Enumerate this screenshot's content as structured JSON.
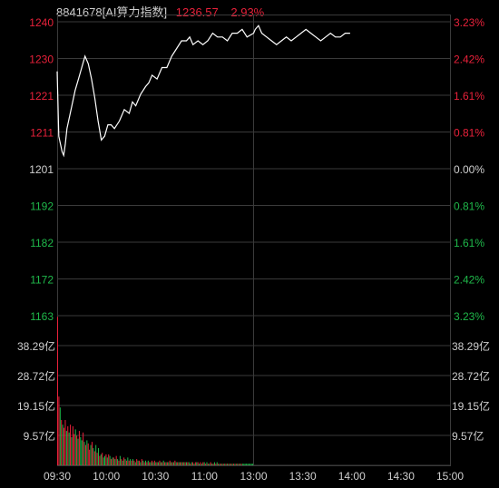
{
  "header": {
    "code_name": "8841678[AI算力指数]",
    "last_price": "1236.57",
    "change_pct": "2.93%"
  },
  "colors": {
    "background": "#000000",
    "grid": "#3a3a3a",
    "up": "#e8213a",
    "down": "#1fb84a",
    "neutral": "#cfcfcf",
    "price_line": "#ffffff"
  },
  "chart_data": [
    {
      "type": "line",
      "title": "8841678[AI算力指数]",
      "base_price": 1201.37,
      "ylim": [
        1163,
        1240
      ],
      "y_ticks_left": [
        "1240",
        "1230",
        "1221",
        "1211",
        "1201",
        "1192",
        "1182",
        "1172",
        "1163"
      ],
      "y_ticks_right": [
        "3.23%",
        "2.42%",
        "1.61%",
        "0.81%",
        "0.00%",
        "0.81%",
        "1.61%",
        "2.42%",
        "3.23%"
      ],
      "x_ticks": [
        "09:30",
        "10:00",
        "10:30",
        "11:00",
        "13:00",
        "13:30",
        "14:00",
        "14:30",
        "15:00"
      ],
      "series": [
        {
          "x": [
            "09:30",
            "09:31",
            "09:32",
            "09:33",
            "09:34",
            "09:35",
            "09:36",
            "09:37",
            "09:39",
            "09:41",
            "09:43",
            "09:45",
            "09:47",
            "09:49",
            "09:51",
            "09:53",
            "09:55",
            "09:57",
            "09:59",
            "10:01",
            "10:03",
            "10:05",
            "10:08",
            "10:11",
            "10:14",
            "10:16",
            "10:18",
            "10:21",
            "10:24",
            "10:26",
            "10:28",
            "10:31",
            "10:34",
            "10:37",
            "10:40",
            "10:43",
            "10:46",
            "10:49",
            "10:51",
            "10:53",
            "10:56",
            "10:59",
            "11:02",
            "11:05",
            "11:08",
            "11:11",
            "11:14",
            "11:17",
            "11:20",
            "11:23",
            "11:26",
            "11:30",
            "13:01",
            "13:03",
            "13:05",
            "13:08",
            "13:11",
            "13:14",
            "13:17",
            "13:20",
            "13:23",
            "13:26",
            "13:29",
            "13:32",
            "13:35",
            "13:38",
            "13:41",
            "13:44",
            "13:47",
            "13:50",
            "13:53",
            "13:56",
            "13:59"
          ],
          "values": [
            1227,
            1210,
            1208,
            1206,
            1205,
            1208,
            1212,
            1214,
            1218,
            1222,
            1225,
            1228,
            1231,
            1229,
            1225,
            1220,
            1214,
            1209,
            1210,
            1213,
            1213,
            1212,
            1214,
            1217,
            1216,
            1219,
            1218,
            1221,
            1223,
            1224,
            1226,
            1225,
            1228,
            1228,
            1231,
            1233,
            1235,
            1235,
            1236,
            1234,
            1235,
            1234,
            1235,
            1237,
            1236,
            1236,
            1235,
            1237,
            1237,
            1238,
            1236,
            1237,
            1238,
            1239,
            1237,
            1236,
            1235,
            1234,
            1235,
            1236,
            1235,
            1236,
            1237,
            1238,
            1237,
            1236,
            1235,
            1236,
            1237,
            1236,
            1236,
            1237,
            1237
          ]
        }
      ]
    },
    {
      "type": "bar",
      "title": "",
      "y_unit": "亿",
      "ylim": [
        0,
        47.87
      ],
      "y_ticks": [
        "38.29亿",
        "28.72亿",
        "19.15亿",
        "9.57亿"
      ],
      "values": [
        47.5,
        22.0,
        18.5,
        14.5,
        13.0,
        12.0,
        14.5,
        11.0,
        12.5,
        10.5,
        13.0,
        9.0,
        12.5,
        10.0,
        11.5,
        9.5,
        8.5,
        11.0,
        9.0,
        8.0,
        10.5,
        7.5,
        6.5,
        8.0,
        7.0,
        5.0,
        6.5,
        7.5,
        5.5,
        4.5,
        6.5,
        4.0,
        5.5,
        3.0,
        3.5,
        4.0,
        2.5,
        3.0,
        3.5,
        2.5,
        3.5,
        3.0,
        2.0,
        2.5,
        2.5,
        2.0,
        3.0,
        2.0,
        1.5,
        3.0,
        2.0,
        1.5,
        2.5,
        2.0,
        1.5,
        2.5,
        1.5,
        2.0,
        1.5,
        2.0,
        1.5,
        1.0,
        2.0,
        1.5,
        1.5,
        1.0,
        2.0,
        1.5,
        1.0,
        1.5,
        1.0,
        1.5,
        1.0,
        1.0,
        1.5,
        1.0,
        1.5,
        1.0,
        1.0,
        1.0,
        1.5,
        1.0,
        1.0,
        1.5,
        1.0,
        1.0,
        1.0,
        1.0,
        1.5,
        1.0,
        1.0,
        1.0,
        1.5,
        1.0,
        1.0,
        1.0,
        1.0,
        1.0,
        1.0,
        1.0,
        1.0,
        1.0,
        1.0,
        1.0,
        0.5,
        1.0,
        1.0,
        0.5,
        1.0,
        1.0,
        1.0,
        0.5,
        1.0,
        0.5,
        1.0,
        1.0,
        0.5,
        1.0,
        0.5,
        0.5,
        1.0,
        0.5,
        0.5,
        1.0,
        0.5,
        1.0,
        0.5,
        0.5,
        0.5,
        0.5,
        0.5,
        0.5,
        0.5,
        0.5,
        0.5,
        0.5,
        0.5,
        0.5,
        0.5,
        0.5,
        0.5,
        0.5,
        0.5,
        0.5,
        0.5,
        0.5,
        0.5,
        0.5,
        0.5,
        0.5,
        0.5,
        0.5,
        0.5,
        0.5
      ],
      "directions": [
        "up",
        "up",
        "down",
        "up",
        "down",
        "up",
        "up",
        "down",
        "up",
        "down",
        "up",
        "down",
        "up",
        "up",
        "down",
        "up",
        "down",
        "up",
        "down",
        "down",
        "up",
        "down",
        "up",
        "down",
        "up",
        "up",
        "down",
        "up",
        "down",
        "up",
        "down",
        "up",
        "down",
        "up",
        "down",
        "up",
        "down",
        "down",
        "up",
        "down",
        "up",
        "down",
        "up",
        "down",
        "up",
        "down",
        "up",
        "down",
        "up",
        "down",
        "up",
        "down",
        "up",
        "down",
        "up",
        "down",
        "up",
        "down",
        "up",
        "down",
        "up",
        "down",
        "up",
        "down",
        "up",
        "down",
        "up",
        "down",
        "up",
        "down",
        "up",
        "down",
        "up",
        "down",
        "up",
        "down",
        "up",
        "down",
        "up",
        "down",
        "up",
        "down",
        "up",
        "down",
        "up",
        "down",
        "up",
        "down",
        "up",
        "down",
        "up",
        "down",
        "up",
        "down",
        "up",
        "down",
        "up",
        "down",
        "up",
        "down",
        "up",
        "down",
        "up",
        "down",
        "up",
        "down",
        "up",
        "down",
        "up",
        "down",
        "up",
        "down",
        "up",
        "down",
        "up",
        "down",
        "up",
        "down",
        "up",
        "down",
        "up",
        "down",
        "up",
        "down",
        "up",
        "down",
        "up",
        "down",
        "up",
        "down",
        "up",
        "down",
        "up",
        "down",
        "up",
        "down",
        "up",
        "down",
        "up",
        "down",
        "up",
        "down",
        "up",
        "down",
        "up",
        "down"
      ]
    }
  ]
}
